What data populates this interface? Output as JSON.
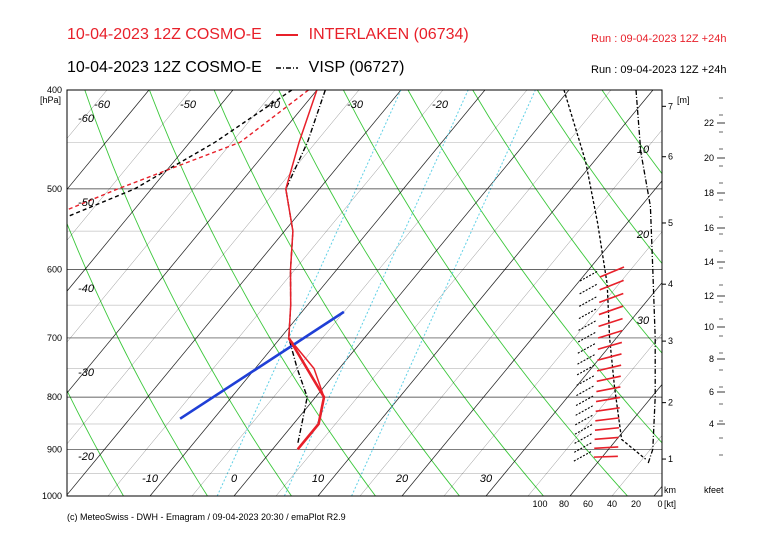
{
  "header": {
    "model_line_1": "10-04-2023 12Z COSMO-E",
    "station_1": "INTERLAKEN (06734)",
    "run_1": "Run : 09-04-2023 12Z +24h",
    "model_line_2": "10-04-2023 12Z COSMO-E",
    "station_2": "VISP (06727)",
    "run_2": "Run : 09-04-2023 12Z +24h"
  },
  "colors": {
    "station_1": "#e8202a",
    "station_2": "#000000",
    "dry_adiabat": "#3cc83c",
    "mixing_ratio": "#5fd0e6",
    "parcel": "#1f3fd6",
    "isotherm": "#000000"
  },
  "footer": "(c) MeteoSwiss - DWH - Emagram / 09-04-2023  20:30 / emaPlot R2.9",
  "chart_data": {
    "type": "line",
    "title": "",
    "pressure_unit_label": "[hPa]",
    "height_m_label": "[m]",
    "height_km_label": "km",
    "height_kfeet_label": "kfeet",
    "wind_unit_label": "[kt]",
    "pressure_ticks": [
      "400",
      "500",
      "600",
      "700",
      "800",
      "900",
      "1000"
    ],
    "pressure_levels": [
      400,
      500,
      600,
      700,
      800,
      900,
      1000
    ],
    "height_km_ticks": [
      "7",
      "6",
      "5",
      "4",
      "3",
      "2",
      "1"
    ],
    "height_kfeet_ticks": [
      "22",
      "20",
      "18",
      "16",
      "14",
      "12",
      "10",
      "8",
      "6",
      "4"
    ],
    "wind_speed_ticks": [
      "100",
      "80",
      "60",
      "40",
      "20",
      "0"
    ],
    "temperature_ticks": [
      "-10",
      "0",
      "10",
      "20",
      "30"
    ],
    "isotherm_labels": [
      "-60",
      "-50",
      "-40",
      "-30",
      "-20",
      "-60",
      "-50",
      "-40",
      "-30",
      "-20"
    ],
    "dry_adiabat_labels": [
      "10",
      "20",
      "30"
    ],
    "series": [
      {
        "name": "INTERLAKEN (06734)",
        "temperature": [
          [
            400,
            -30
          ],
          [
            450,
            -27
          ],
          [
            500,
            -24
          ],
          [
            550,
            -19
          ],
          [
            600,
            -15.5
          ],
          [
            650,
            -12
          ],
          [
            700,
            -9
          ],
          [
            750,
            -3
          ],
          [
            800,
            1
          ],
          [
            850,
            3
          ],
          [
            900,
            3
          ]
        ],
        "dewpoint": [
          [
            400,
            -31
          ],
          [
            450,
            -34
          ],
          [
            500,
            -44
          ],
          [
            550,
            -52
          ],
          [
            600,
            -57
          ],
          [
            650,
            -62
          ],
          [
            700,
            -56
          ],
          [
            750,
            -51
          ],
          [
            800,
            -47
          ],
          [
            850,
            -44
          ],
          [
            900,
            -38
          ],
          [
            920,
            -34
          ]
        ]
      },
      {
        "name": "VISP (06727)",
        "temperature": [
          [
            400,
            -29
          ],
          [
            450,
            -26
          ],
          [
            500,
            -24
          ],
          [
            550,
            -19
          ],
          [
            600,
            -15.5
          ],
          [
            650,
            -12
          ],
          [
            700,
            -9
          ],
          [
            750,
            -5
          ],
          [
            800,
            -1
          ],
          [
            850,
            1
          ],
          [
            890,
            2.5
          ]
        ],
        "dewpoint": [
          [
            400,
            -33
          ],
          [
            450,
            -37
          ],
          [
            500,
            -42
          ],
          [
            550,
            -50
          ],
          [
            600,
            -59
          ],
          [
            650,
            -62
          ],
          [
            700,
            -59
          ],
          [
            750,
            -58
          ],
          [
            800,
            -57
          ],
          [
            840,
            -50
          ],
          [
            880,
            -49
          ],
          [
            900,
            -49
          ]
        ]
      }
    ],
    "parcel_profile": [
      [
        660,
        -5
      ],
      [
        840,
        -14
      ]
    ]
  }
}
